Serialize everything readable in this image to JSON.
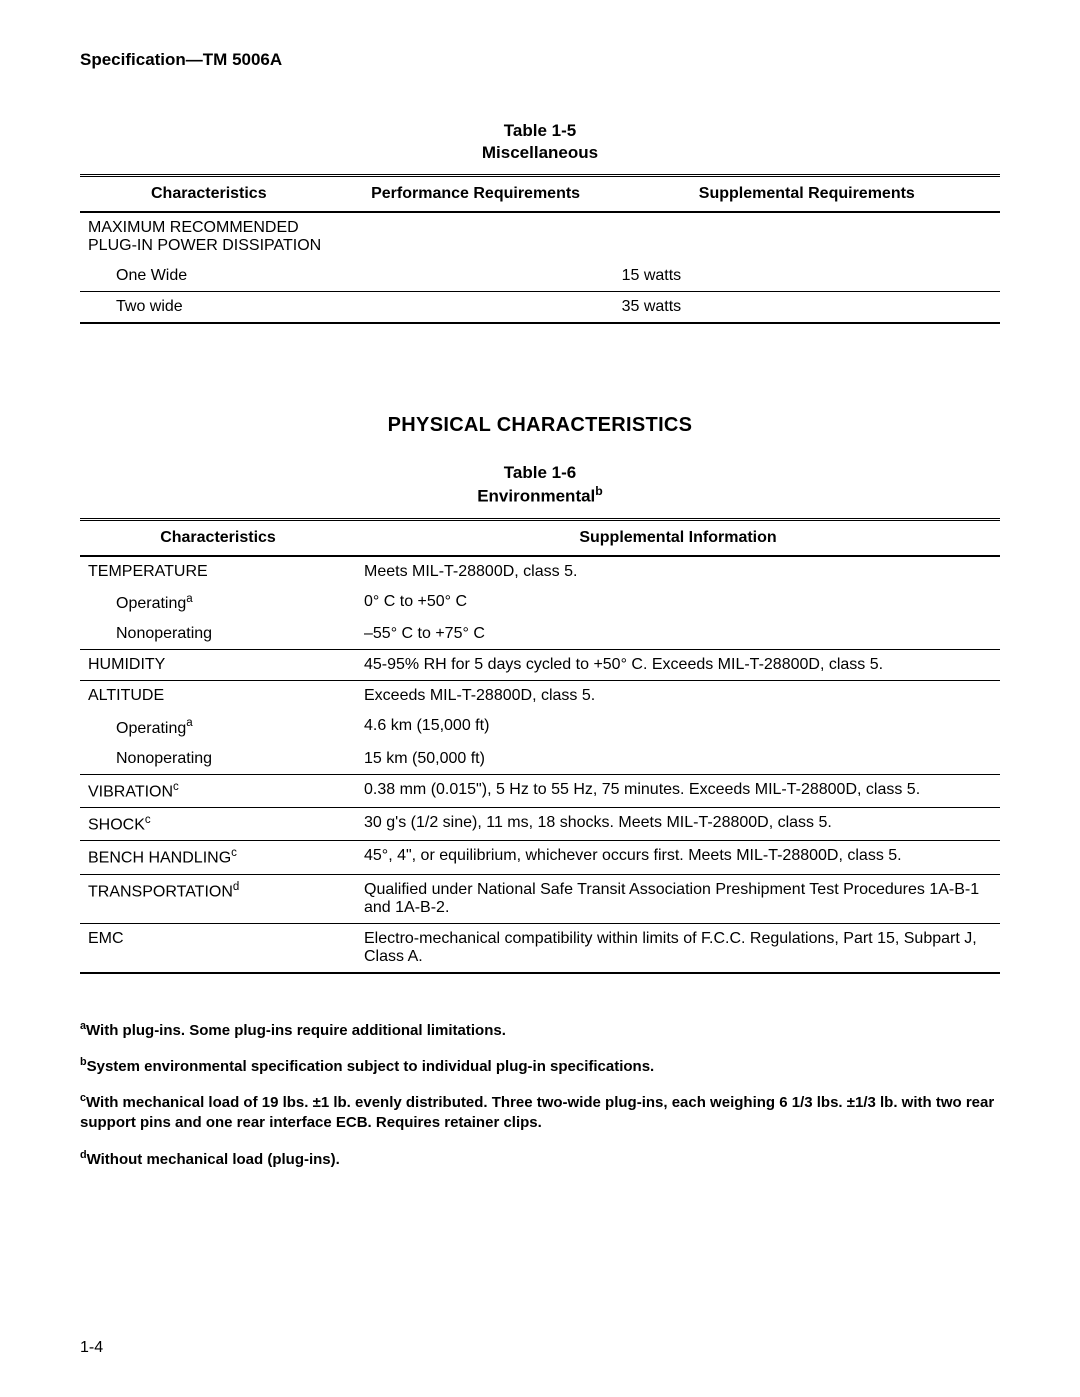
{
  "doc_header": "Specification—TM 5006A",
  "table15": {
    "caption_line1": "Table 1-5",
    "caption_line2": "Miscellaneous",
    "headers": {
      "c1": "Characteristics",
      "c2": "Performance Requirements",
      "c3": "Supplemental Requirements"
    },
    "row_group_label": "MAXIMUM RECOMMENDED PLUG-IN POWER DISSIPATION",
    "rows": [
      {
        "char": "One Wide",
        "perf": "",
        "supp": "15 watts"
      },
      {
        "char": "Two wide",
        "perf": "",
        "supp": "35 watts"
      }
    ]
  },
  "section_physical": "PHYSICAL CHARACTERISTICS",
  "table16": {
    "caption_line1": "Table 1-6",
    "caption_line2_pre": "Environmental",
    "caption_line2_sup": "b",
    "headers": {
      "c1": "Characteristics",
      "c2": "Supplemental Information"
    },
    "rows": [
      {
        "char": "TEMPERATURE",
        "sup": "",
        "info": "Meets MIL-T-28800D, class 5.",
        "group": true
      },
      {
        "char": "Operating",
        "sup": "a",
        "info": "0° C to +50° C",
        "indent": true,
        "group": true
      },
      {
        "char": "Nonoperating",
        "sup": "",
        "info": "–55° C to +75° C",
        "indent": true
      },
      {
        "char": "HUMIDITY",
        "sup": "",
        "info": "45-95% RH for 5 days cycled to +50° C.  Exceeds MIL-T-28800D, class 5."
      },
      {
        "char": "ALTITUDE",
        "sup": "",
        "info": "Exceeds MIL-T-28800D, class 5.",
        "group": true
      },
      {
        "char": "Operating",
        "sup": "a",
        "info": "4.6 km (15,000 ft)",
        "indent": true,
        "group": true
      },
      {
        "char": "Nonoperating",
        "sup": "",
        "info": "15 km (50,000 ft)",
        "indent": true
      },
      {
        "char": "VIBRATION",
        "sup": "c",
        "info": "0.38 mm (0.015\"), 5 Hz to 55 Hz, 75 minutes.  Exceeds MIL-T-28800D, class 5."
      },
      {
        "char": "SHOCK",
        "sup": "c",
        "info": "30 g's (1/2 sine), 11 ms, 18 shocks.  Meets MIL-T-28800D, class 5."
      },
      {
        "char": "BENCH HANDLING",
        "sup": "c",
        "info": "45°, 4\", or equilibrium, whichever occurs first.  Meets MIL-T-28800D, class 5."
      },
      {
        "char": "TRANSPORTATION",
        "sup": "d",
        "info": "Qualified  under National Safe Transit Association Preshipment Test Procedures 1A-B-1 and 1A-B-2."
      },
      {
        "char": "EMC",
        "sup": "",
        "info": "Electro-mechanical compatibility within limits of F.C.C. Regulations, Part 15, Subpart J, Class A."
      }
    ]
  },
  "footnotes": {
    "a": {
      "sup": "a",
      "text": "With plug-ins.  Some plug-ins require additional limitations."
    },
    "b": {
      "sup": "b",
      "text": "System environmental specification subject to individual plug-in specifications."
    },
    "c": {
      "sup": "c",
      "text": "With mechanical load of 19 lbs. ±1 lb. evenly distributed. Three two-wide plug-ins, each weighing 6 1/3 lbs. ±1/3 lb. with two rear support pins and one rear interface ECB.  Requires retainer clips."
    },
    "d": {
      "sup": "d",
      "text": "Without mechanical load (plug-ins)."
    }
  },
  "page_number": "1-4"
}
